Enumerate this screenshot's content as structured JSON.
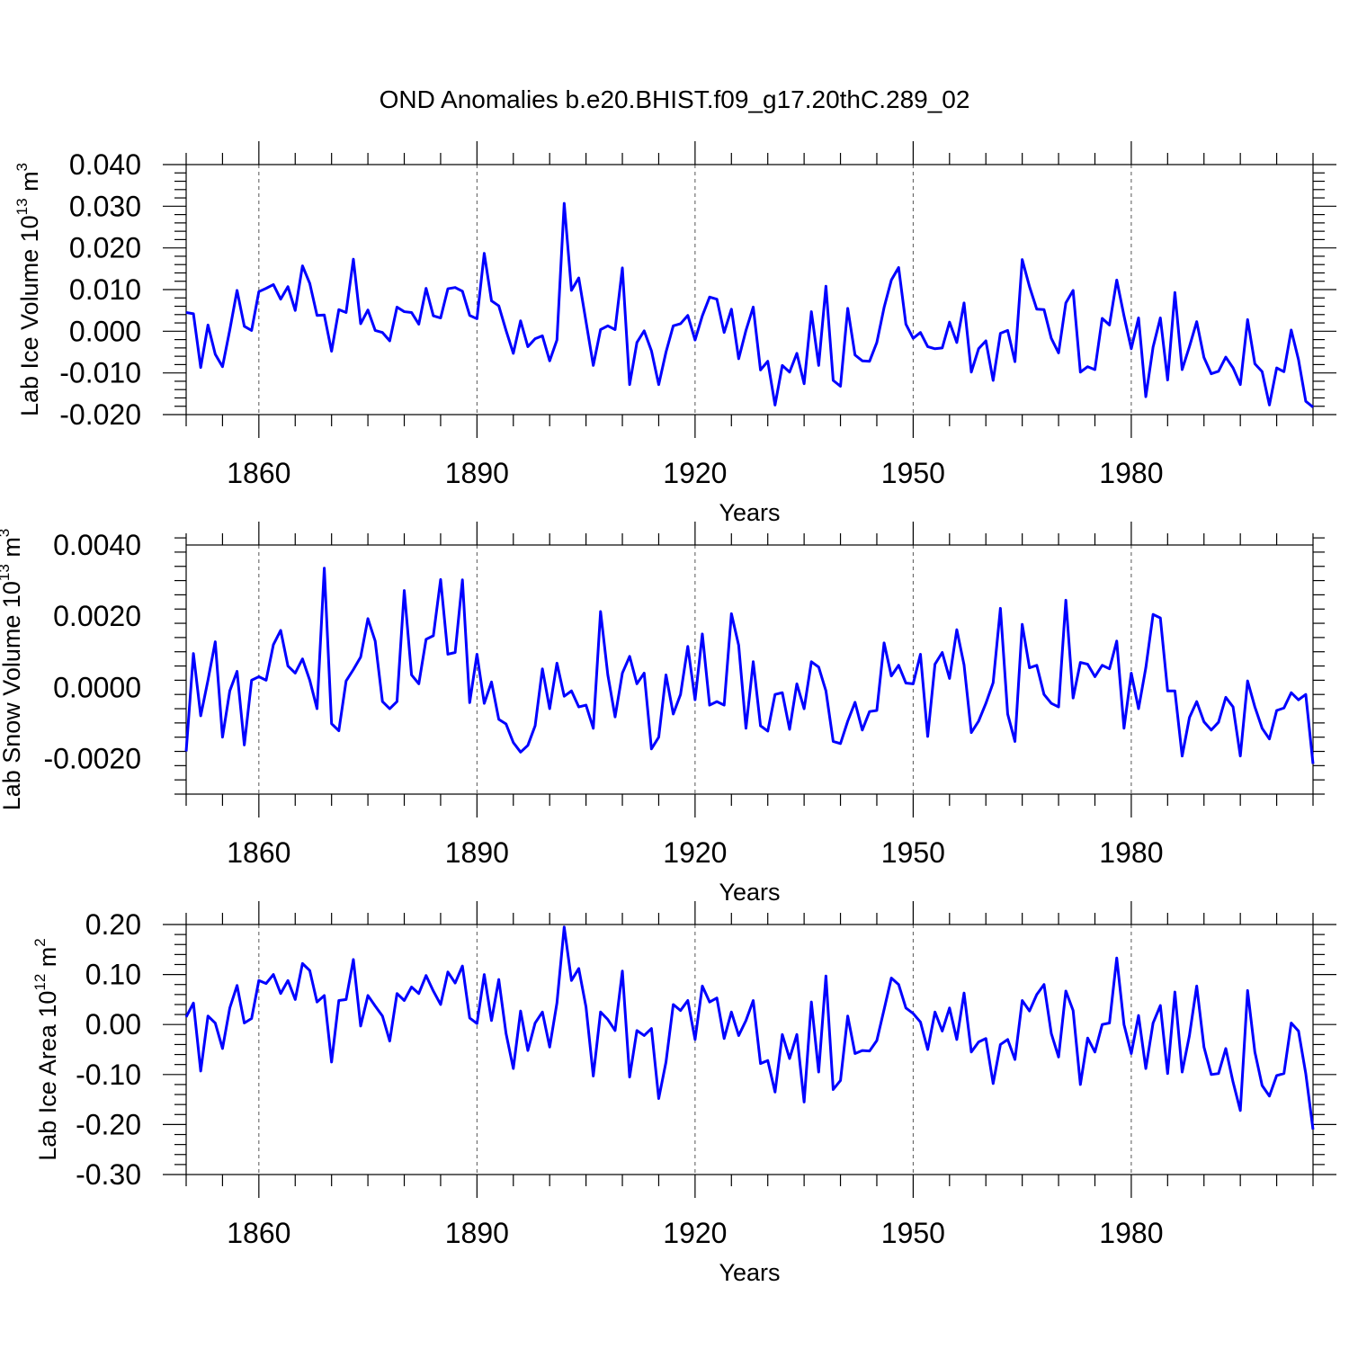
{
  "title": "OND Anomalies b.e20.BHIST.f09_g17.20thC.289_02",
  "series_color": "#0000ff",
  "chart_data": [
    {
      "type": "line",
      "ylabel": "Lab Ice Volume 10",
      "ylabel_exp": "13",
      "ylabel_unit": " m",
      "ylabel_unit_exp": "3",
      "xlabel": "Years",
      "xlim": [
        1850,
        2005
      ],
      "ylim": [
        -0.02,
        0.04
      ],
      "yticks": [
        -0.02,
        -0.01,
        0.0,
        0.01,
        0.02,
        0.03,
        0.04
      ],
      "ytick_labels": [
        "-0.020",
        "-0.010",
        "0.000",
        "0.010",
        "0.020",
        "0.030",
        "0.040"
      ],
      "xticks": [
        1860,
        1890,
        1920,
        1950,
        1980
      ],
      "xtick_labels": [
        "1860",
        "1890",
        "1920",
        "1950",
        "1980"
      ],
      "x_start": 1850,
      "values": [
        0.0045,
        0.0042,
        -0.0087,
        0.0015,
        -0.0055,
        -0.0085,
        0.0003,
        0.0098,
        0.0012,
        0.0002,
        0.0095,
        0.0103,
        0.0112,
        0.0077,
        0.0107,
        0.005,
        0.0157,
        0.0115,
        0.0038,
        0.0039,
        -0.0048,
        0.0052,
        0.0045,
        0.0173,
        0.0018,
        0.0051,
        0.0002,
        -0.0003,
        -0.0023,
        0.0058,
        0.0047,
        0.0045,
        0.0017,
        0.0103,
        0.0037,
        0.0032,
        0.0102,
        0.0105,
        0.0096,
        0.0038,
        0.003,
        0.0187,
        0.0073,
        0.0061,
        0.0002,
        -0.0053,
        0.0025,
        -0.0037,
        -0.0018,
        -0.0011,
        -0.0071,
        -0.0021,
        0.0307,
        0.0098,
        0.0128,
        0.0023,
        -0.0082,
        0.0004,
        0.0013,
        0.0004,
        0.0152,
        -0.0128,
        -0.0027,
        0.0001,
        -0.0047,
        -0.0128,
        -0.005,
        0.0013,
        0.0018,
        0.0038,
        -0.0021,
        0.0037,
        0.0082,
        0.0077,
        -0.0003,
        0.0053,
        -0.0066,
        0.0002,
        0.0058,
        -0.0093,
        -0.0072,
        -0.0177,
        -0.0082,
        -0.0098,
        -0.0053,
        -0.0126,
        0.0047,
        -0.0082,
        0.0108,
        -0.0118,
        -0.0132,
        0.0055,
        -0.0057,
        -0.0071,
        -0.0072,
        -0.0027,
        0.0057,
        0.0123,
        0.0153,
        0.0017,
        -0.0017,
        -0.0003,
        -0.0037,
        -0.0042,
        -0.004,
        0.0022,
        -0.0027,
        0.0068,
        -0.0098,
        -0.0042,
        -0.0023,
        -0.0118,
        -0.0005,
        0.0002,
        -0.0073,
        0.0172,
        0.0107,
        0.0053,
        0.0052,
        -0.0017,
        -0.0052,
        0.0068,
        0.0098,
        -0.0098,
        -0.0085,
        -0.0092,
        0.0031,
        0.0015,
        0.0123,
        0.0037,
        -0.0042,
        0.0032,
        -0.0157,
        -0.0038,
        0.0032,
        -0.0117,
        0.0093,
        -0.0092,
        -0.0037,
        0.0023,
        -0.0063,
        -0.0102,
        -0.0096,
        -0.0062,
        -0.0088,
        -0.0128,
        0.0028,
        -0.0078,
        -0.0097,
        -0.0177,
        -0.0088,
        -0.0097,
        0.0003,
        -0.0068,
        -0.0168,
        -0.0182
      ]
    },
    {
      "type": "line",
      "ylabel": "Lab Snow Volume 10",
      "ylabel_exp": "13",
      "ylabel_unit": " m",
      "ylabel_unit_exp": "3",
      "xlabel": "Years",
      "xlim": [
        1850,
        2005
      ],
      "ylim": [
        -0.003,
        0.004
      ],
      "yticks": [
        -0.002,
        0.0,
        0.002,
        0.004
      ],
      "ytick_labels": [
        "-0.0020",
        "0.0000",
        "0.0020",
        "0.0040"
      ],
      "xticks": [
        1860,
        1890,
        1920,
        1950,
        1980
      ],
      "xtick_labels": [
        "1860",
        "1890",
        "1920",
        "1950",
        "1980"
      ],
      "x_start": 1850,
      "values": [
        -0.0018,
        0.00095,
        -0.0008,
        0.0002,
        0.00128,
        -0.0014,
        -0.0001,
        0.00045,
        -0.00162,
        0.0002,
        0.0003,
        0.0002,
        0.0012,
        0.0016,
        0.0006,
        0.0004,
        0.0008,
        0.0002,
        -0.0006,
        0.00335,
        -0.00102,
        -0.00122,
        0.00018,
        0.0005,
        0.00085,
        0.00193,
        0.0013,
        -0.0004,
        -0.0006,
        -0.0004,
        0.00272,
        0.00035,
        0.0001,
        0.00135,
        0.00145,
        0.00303,
        0.00093,
        0.00098,
        0.00302,
        -0.00043,
        0.00093,
        -0.00045,
        0.00015,
        -0.0009,
        -0.00103,
        -0.00155,
        -0.00182,
        -0.00163,
        -0.00108,
        0.00052,
        -0.0006,
        0.00068,
        -0.00025,
        -0.0001,
        -0.00055,
        -0.0005,
        -0.00115,
        0.00213,
        0.00035,
        -0.00083,
        0.0004,
        0.00087,
        0.0001,
        0.0004,
        -0.00173,
        -0.0014,
        0.00035,
        -0.00075,
        -0.0002,
        0.00115,
        -0.00035,
        0.0015,
        -0.0005,
        -0.0004,
        -0.0005,
        0.00207,
        0.00118,
        -0.00115,
        0.00072,
        -0.00108,
        -0.00123,
        -0.0002,
        -0.00015,
        -0.00118,
        0.0001,
        -0.0006,
        0.00072,
        0.00057,
        -0.0001,
        -0.00152,
        -0.00158,
        -0.00095,
        -0.00042,
        -0.0012,
        -0.00068,
        -0.00065,
        0.00125,
        0.00032,
        0.00062,
        0.00012,
        0.0001,
        0.00093,
        -0.00138,
        0.00065,
        0.00098,
        0.00025,
        0.00162,
        0.00063,
        -0.00127,
        -0.00095,
        -0.00045,
        0.00013,
        0.00222,
        -0.00075,
        -0.00152,
        0.00177,
        0.00055,
        0.00062,
        -0.0002,
        -0.00045,
        -0.00055,
        0.00245,
        -0.0003,
        0.0007,
        0.00065,
        0.0003,
        0.00062,
        0.00052,
        0.0013,
        -0.00115,
        0.0004,
        -0.0006,
        0.00055,
        0.00205,
        0.00195,
        -0.0001,
        -0.0001,
        -0.00193,
        -0.00085,
        -0.0004,
        -0.00097,
        -0.0012,
        -0.00098,
        -0.00028,
        -0.00055,
        -0.00193,
        0.00018,
        -0.00055,
        -0.00115,
        -0.00145,
        -0.00065,
        -0.00058,
        -0.00015,
        -0.00035,
        -0.0002,
        -0.00215
      ]
    },
    {
      "type": "line",
      "ylabel": "Lab Ice Area 10",
      "ylabel_exp": "12",
      "ylabel_unit": " m",
      "ylabel_unit_exp": "2",
      "xlabel": "Years",
      "xlim": [
        1850,
        2005
      ],
      "ylim": [
        -0.3,
        0.2
      ],
      "yticks": [
        -0.3,
        -0.2,
        -0.1,
        0.0,
        0.1,
        0.2
      ],
      "ytick_labels": [
        "-0.30",
        "-0.20",
        "-0.10",
        "0.00",
        "0.10",
        "0.20"
      ],
      "xticks": [
        1860,
        1890,
        1920,
        1950,
        1980
      ],
      "xtick_labels": [
        "1860",
        "1890",
        "1920",
        "1950",
        "1980"
      ],
      "x_start": 1850,
      "values": [
        0.015,
        0.043,
        -0.093,
        0.017,
        0.003,
        -0.048,
        0.033,
        0.078,
        0.003,
        0.012,
        0.088,
        0.082,
        0.1,
        0.062,
        0.088,
        0.05,
        0.122,
        0.108,
        0.045,
        0.058,
        -0.075,
        0.048,
        0.05,
        0.13,
        -0.003,
        0.058,
        0.037,
        0.017,
        -0.033,
        0.062,
        0.048,
        0.075,
        0.062,
        0.098,
        0.067,
        0.04,
        0.105,
        0.083,
        0.117,
        0.013,
        0.002,
        0.1,
        0.008,
        0.09,
        -0.018,
        -0.088,
        0.027,
        -0.052,
        0.003,
        0.025,
        -0.045,
        0.043,
        0.195,
        0.088,
        0.112,
        0.035,
        -0.103,
        0.025,
        0.01,
        -0.012,
        0.107,
        -0.105,
        -0.012,
        -0.022,
        -0.008,
        -0.148,
        -0.075,
        0.04,
        0.028,
        0.048,
        -0.03,
        0.077,
        0.045,
        0.053,
        -0.028,
        0.025,
        -0.022,
        0.008,
        0.048,
        -0.078,
        -0.072,
        -0.135,
        -0.02,
        -0.068,
        -0.02,
        -0.155,
        0.045,
        -0.095,
        0.097,
        -0.13,
        -0.112,
        0.017,
        -0.058,
        -0.052,
        -0.053,
        -0.032,
        0.03,
        0.093,
        0.08,
        0.033,
        0.022,
        0.005,
        -0.05,
        0.025,
        -0.013,
        0.033,
        -0.03,
        0.063,
        -0.055,
        -0.035,
        -0.028,
        -0.118,
        -0.04,
        -0.03,
        -0.07,
        0.048,
        0.027,
        0.06,
        0.08,
        -0.018,
        -0.065,
        0.067,
        0.028,
        -0.12,
        -0.027,
        -0.055,
        0.0,
        0.003,
        0.133,
        0.0,
        -0.058,
        0.018,
        -0.088,
        0.003,
        0.038,
        -0.098,
        0.065,
        -0.095,
        -0.022,
        0.077,
        -0.045,
        -0.1,
        -0.098,
        -0.048,
        -0.115,
        -0.172,
        0.068,
        -0.055,
        -0.122,
        -0.143,
        -0.102,
        -0.098,
        0.003,
        -0.013,
        -0.098,
        -0.21
      ]
    }
  ]
}
